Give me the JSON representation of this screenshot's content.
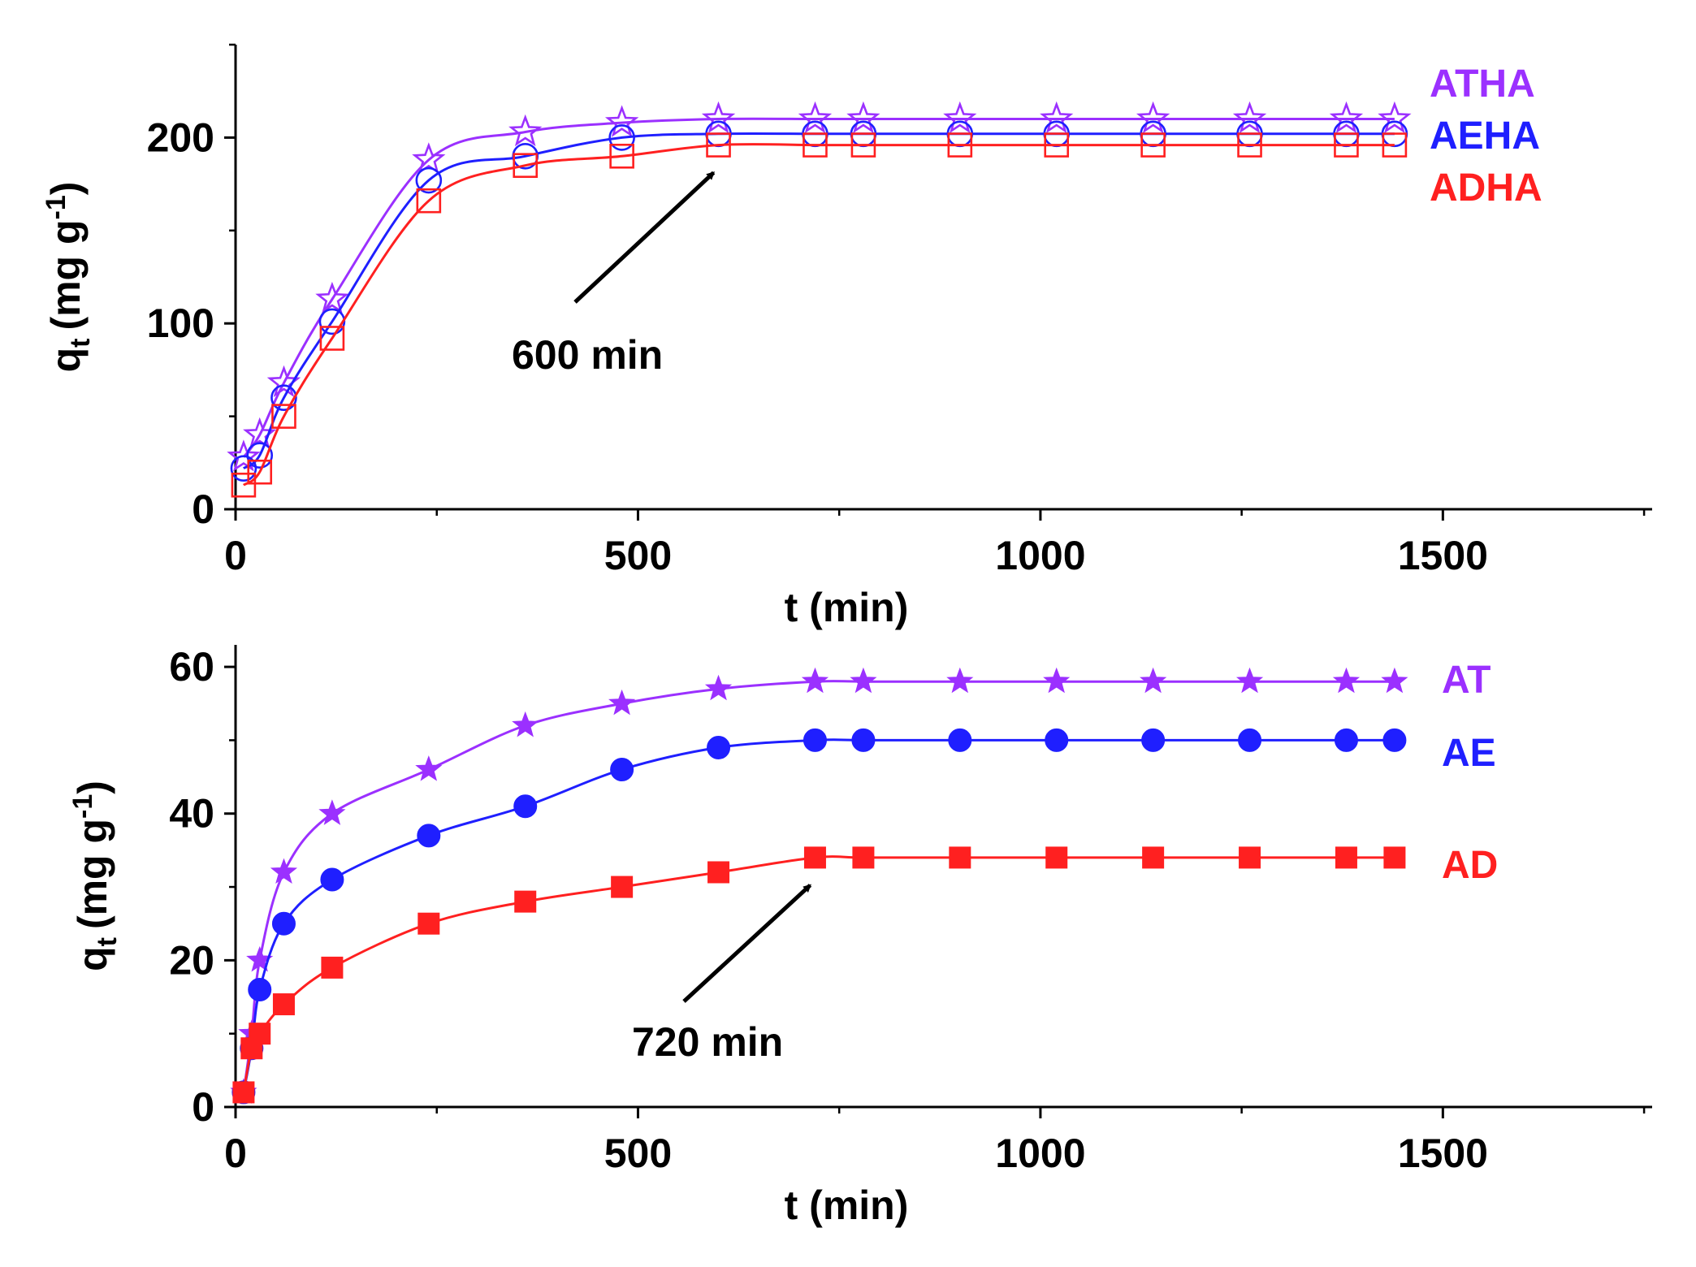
{
  "chart_data": [
    {
      "type": "line",
      "panel": "top",
      "xlabel": "t (min)",
      "ylabel": "q",
      "ylabel_sub": "t",
      "ylabel_units": "(mg g",
      "ylabel_sup": "-1",
      "ylabel_close": ")",
      "xlim": [
        0,
        1760
      ],
      "ylim": [
        0,
        250
      ],
      "xticks": [
        0,
        500,
        1000,
        1500
      ],
      "xticks_minor": [
        250,
        750,
        1250,
        1750
      ],
      "yticks": [
        0,
        100,
        200
      ],
      "yticks_minor": [
        50,
        150,
        250
      ],
      "x": [
        10,
        30,
        60,
        120,
        240,
        360,
        480,
        600,
        720,
        780,
        900,
        1020,
        1140,
        1260,
        1380,
        1440
      ],
      "series": [
        {
          "name": "ATHA",
          "color": "#9b30ff",
          "marker": "star-open",
          "values": [
            28,
            40,
            68,
            113,
            188,
            203,
            208,
            210,
            210,
            210,
            210,
            210,
            210,
            210,
            210,
            210
          ]
        },
        {
          "name": "AEHA",
          "color": "#1f1fff",
          "marker": "circle-open",
          "values": [
            22,
            29,
            60,
            101,
            177,
            190,
            200,
            202,
            202,
            202,
            202,
            202,
            202,
            202,
            202,
            202
          ]
        },
        {
          "name": "ADHA",
          "color": "#ff2020",
          "marker": "square-open",
          "values": [
            13,
            20,
            50,
            92,
            166,
            185,
            190,
            196,
            196,
            196,
            196,
            196,
            196,
            196,
            196,
            196
          ]
        }
      ],
      "annotation": {
        "text": "600 min",
        "points_to_x": 600
      }
    },
    {
      "type": "line",
      "panel": "bottom",
      "xlabel": "t (min)",
      "ylabel": "q",
      "ylabel_sub": "t",
      "ylabel_units": "(mg g",
      "ylabel_sup": "-1",
      "ylabel_close": ")",
      "xlim": [
        0,
        1760
      ],
      "ylim": [
        0,
        63
      ],
      "xticks": [
        0,
        500,
        1000,
        1500
      ],
      "xticks_minor": [
        250,
        750,
        1250,
        1750
      ],
      "yticks": [
        0,
        20,
        40,
        60
      ],
      "yticks_minor": [
        10,
        30,
        50
      ],
      "x": [
        10,
        20,
        30,
        60,
        120,
        240,
        360,
        480,
        600,
        720,
        780,
        900,
        1020,
        1140,
        1260,
        1380,
        1440
      ],
      "series": [
        {
          "name": "AT",
          "color": "#9b30ff",
          "marker": "star-filled",
          "values": [
            2,
            10,
            20,
            32,
            40,
            46,
            52,
            55,
            57,
            58,
            58,
            58,
            58,
            58,
            58,
            58,
            58
          ]
        },
        {
          "name": "AE",
          "color": "#1f1fff",
          "marker": "circle-filled",
          "values": [
            2,
            8,
            16,
            25,
            31,
            37,
            41,
            46,
            49,
            50,
            50,
            50,
            50,
            50,
            50,
            50,
            50
          ]
        },
        {
          "name": "AD",
          "color": "#ff2020",
          "marker": "square-filled",
          "values": [
            2,
            8,
            10,
            14,
            19,
            25,
            28,
            30,
            32,
            34,
            34,
            34,
            34,
            34,
            34,
            34,
            34
          ]
        }
      ],
      "annotation": {
        "text": "720 min",
        "points_to_x": 720
      }
    }
  ]
}
